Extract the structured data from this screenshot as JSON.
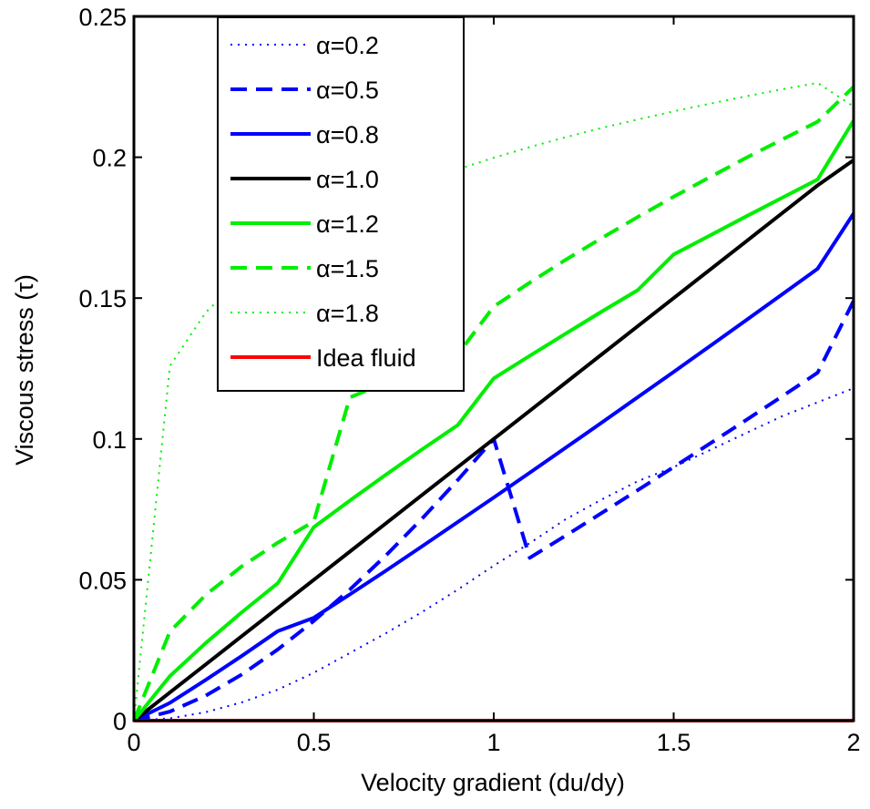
{
  "chart_data": {
    "type": "line",
    "title": "",
    "xlabel": "Velocity gradient (du/dy)",
    "ylabel": "Viscous stress (τ)",
    "xlim": [
      0,
      2
    ],
    "ylim": [
      0,
      0.25
    ],
    "xticks": [
      0,
      0.5,
      1,
      1.5,
      2
    ],
    "xtick_labels": [
      "0",
      "0.5",
      "1",
      "1.5",
      "2"
    ],
    "yticks": [
      0,
      0.05,
      0.1,
      0.15,
      0.2,
      0.25
    ],
    "ytick_labels": [
      "0",
      "0.05",
      "0.1",
      "0.15",
      "0.2",
      "0.25"
    ],
    "grid": false,
    "legend_position": "top-left",
    "x": [
      0,
      0.1,
      0.2,
      0.3,
      0.4,
      0.5,
      0.6,
      0.7,
      0.8,
      0.9,
      1.0,
      1.1,
      1.2,
      1.3,
      1.4,
      1.5,
      1.6,
      1.7,
      1.8,
      1.9,
      2.0
    ],
    "series": [
      {
        "name": "α=0.2",
        "color": "#0000ff",
        "style": "dotted",
        "values": [
          0,
          0.0008,
          0.003,
          0.0065,
          0.011,
          0.017,
          0.024,
          0.031,
          0.0385,
          0.0465,
          0.055,
          0.063,
          0.0715,
          0.0785,
          0.085,
          0.09,
          0.096,
          0.102,
          0.108,
          0.113,
          0.118
        ]
      },
      {
        "name": "α=0.5",
        "color": "#0000ff",
        "style": "dashed",
        "values": [
          0,
          0.0032,
          0.0089,
          0.0164,
          0.0253,
          0.0354,
          0.0465,
          0.0586,
          0.0716,
          0.0854,
          0.1,
          0.0578,
          0.0657,
          0.0737,
          0.0818,
          0.09,
          0.0983,
          0.1066,
          0.115,
          0.1235,
          0.149
        ]
      },
      {
        "name": "α=0.8",
        "color": "#0000ff",
        "style": "solid",
        "values": [
          0,
          0.0063,
          0.0145,
          0.023,
          0.0318,
          0.0365,
          0.0448,
          0.0532,
          0.0618,
          0.0705,
          0.0792,
          0.088,
          0.0969,
          0.1058,
          0.1148,
          0.1238,
          0.1329,
          0.142,
          0.1512,
          0.1604,
          0.18
        ]
      },
      {
        "name": "α=1.0",
        "color": "#000000",
        "style": "solid",
        "values": [
          0,
          0.01,
          0.02,
          0.03,
          0.04,
          0.05,
          0.06,
          0.07,
          0.08,
          0.09,
          0.1,
          0.11,
          0.12,
          0.13,
          0.14,
          0.15,
          0.16,
          0.17,
          0.18,
          0.19,
          0.199
        ]
      },
      {
        "name": "α=1.2",
        "color": "#00ee00",
        "style": "solid",
        "values": [
          0,
          0.0158,
          0.0276,
          0.0385,
          0.0488,
          0.0687,
          0.0781,
          0.0873,
          0.0962,
          0.1049,
          0.1215,
          0.1295,
          0.1374,
          0.1452,
          0.1528,
          0.1655,
          0.1722,
          0.1789,
          0.1855,
          0.1921,
          0.213
        ]
      },
      {
        "name": "α=1.5",
        "color": "#00ee00",
        "style": "dashed",
        "values": [
          0,
          0.0316,
          0.0447,
          0.0548,
          0.0632,
          0.0707,
          0.1147,
          0.1201,
          0.1252,
          0.13,
          0.147,
          0.1555,
          0.1636,
          0.1713,
          0.1788,
          0.186,
          0.1929,
          0.1997,
          0.2062,
          0.2126,
          0.225
        ]
      },
      {
        "name": "α=1.8",
        "color": "#00ee00",
        "style": "dotted",
        "values": [
          0,
          0.1259,
          0.145,
          0.1573,
          0.1666,
          0.1741,
          0.1806,
          0.1862,
          0.1912,
          0.1957,
          0.1998,
          0.2036,
          0.2071,
          0.2104,
          0.2134,
          0.2163,
          0.219,
          0.2216,
          0.2241,
          0.2264,
          0.218
        ]
      },
      {
        "name": "Idea fluid",
        "color": "#ff0000",
        "style": "solid",
        "values": [
          0,
          0,
          0,
          0,
          0,
          0,
          0,
          0,
          0,
          0,
          0,
          0,
          0,
          0,
          0,
          0,
          0,
          0,
          0,
          0,
          0
        ]
      }
    ]
  }
}
